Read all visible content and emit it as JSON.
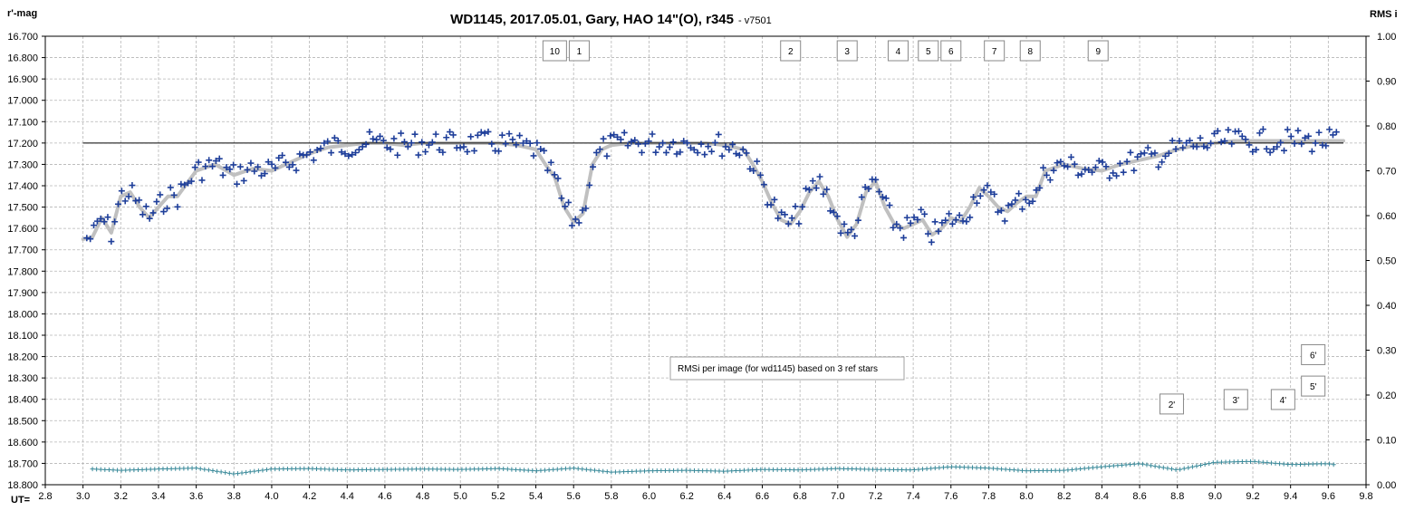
{
  "chart_data": {
    "type": "scatter",
    "title": "WD1145, 2017.05.01,  Gary, HAO 14\"(O), r345",
    "subtitle": "- v7501",
    "ylabel_left": "r'-mag",
    "ylabel_right": "RMS i",
    "xlabel": "UT=",
    "xlim": [
      2.8,
      9.8
    ],
    "ylim_left": [
      16.7,
      18.8
    ],
    "ylim_right": [
      0.0,
      1.0
    ],
    "y_left_reversed": true,
    "grid": true,
    "x_ticks": [
      "2.8",
      "3.0",
      "3.2",
      "3.4",
      "3.6",
      "3.8",
      "4.0",
      "4.2",
      "4.4",
      "4.6",
      "4.8",
      "5.0",
      "5.2",
      "5.4",
      "5.6",
      "5.8",
      "6.0",
      "6.2",
      "6.4",
      "6.6",
      "6.8",
      "7.0",
      "7.2",
      "7.4",
      "7.6",
      "7.8",
      "8.0",
      "8.2",
      "8.4",
      "8.6",
      "8.8",
      "9.0",
      "9.2",
      "9.4",
      "9.6",
      "9.8"
    ],
    "y_left_ticks": [
      "16.700",
      "16.800",
      "16.900",
      "17.000",
      "17.100",
      "17.200",
      "17.300",
      "17.400",
      "17.500",
      "17.600",
      "17.700",
      "17.800",
      "17.900",
      "18.000",
      "18.100",
      "18.200",
      "18.300",
      "18.400",
      "18.500",
      "18.600",
      "18.700",
      "18.800"
    ],
    "y_right_ticks": [
      "1.00",
      "0.90",
      "0.80",
      "0.70",
      "0.60",
      "0.50",
      "0.40",
      "0.30",
      "0.20",
      "0.10",
      "0.00"
    ],
    "reference_level": {
      "y": 17.2,
      "x": [
        3.0,
        9.68
      ]
    },
    "smooth_curve": {
      "x": [
        3.0,
        3.05,
        3.1,
        3.15,
        3.2,
        3.25,
        3.3,
        3.35,
        3.4,
        3.45,
        3.5,
        3.6,
        3.7,
        3.8,
        3.9,
        4.0,
        4.1,
        4.2,
        4.3,
        4.4,
        4.5,
        4.6,
        4.7,
        4.8,
        4.9,
        5.0,
        5.1,
        5.2,
        5.3,
        5.4,
        5.45,
        5.5,
        5.55,
        5.6,
        5.65,
        5.7,
        5.75,
        5.8,
        5.9,
        6.0,
        6.1,
        6.2,
        6.3,
        6.4,
        6.5,
        6.55,
        6.6,
        6.65,
        6.7,
        6.75,
        6.8,
        6.85,
        6.9,
        6.95,
        7.0,
        7.05,
        7.1,
        7.15,
        7.2,
        7.25,
        7.3,
        7.35,
        7.4,
        7.45,
        7.5,
        7.55,
        7.6,
        7.65,
        7.7,
        7.75,
        7.8,
        7.85,
        7.9,
        7.95,
        8.0,
        8.05,
        8.1,
        8.2,
        8.3,
        8.4,
        8.5,
        8.6,
        8.7,
        8.8,
        8.9,
        9.0,
        9.1,
        9.2,
        9.3,
        9.4,
        9.5,
        9.6,
        9.68
      ],
      "y": [
        17.65,
        17.64,
        17.55,
        17.62,
        17.45,
        17.43,
        17.5,
        17.55,
        17.5,
        17.45,
        17.45,
        17.33,
        17.3,
        17.35,
        17.32,
        17.33,
        17.29,
        17.25,
        17.22,
        17.21,
        17.2,
        17.2,
        17.21,
        17.2,
        17.2,
        17.2,
        17.2,
        17.2,
        17.21,
        17.23,
        17.3,
        17.36,
        17.5,
        17.57,
        17.53,
        17.3,
        17.23,
        17.21,
        17.2,
        17.2,
        17.2,
        17.2,
        17.2,
        17.21,
        17.23,
        17.3,
        17.38,
        17.48,
        17.56,
        17.58,
        17.52,
        17.43,
        17.38,
        17.45,
        17.56,
        17.64,
        17.58,
        17.43,
        17.38,
        17.5,
        17.58,
        17.6,
        17.58,
        17.56,
        17.63,
        17.6,
        17.55,
        17.57,
        17.5,
        17.41,
        17.45,
        17.5,
        17.52,
        17.48,
        17.45,
        17.45,
        17.33,
        17.3,
        17.32,
        17.33,
        17.3,
        17.28,
        17.26,
        17.23,
        17.21,
        17.2,
        17.19,
        17.19,
        17.19,
        17.19,
        17.19,
        17.19,
        17.19
      ]
    },
    "rms_series": {
      "x": [
        3.05,
        3.2,
        3.4,
        3.6,
        3.8,
        4.0,
        4.2,
        4.4,
        4.6,
        4.8,
        5.0,
        5.2,
        5.4,
        5.6,
        5.8,
        6.0,
        6.2,
        6.4,
        6.6,
        6.8,
        7.0,
        7.2,
        7.4,
        7.6,
        7.8,
        8.0,
        8.2,
        8.4,
        8.6,
        8.8,
        9.0,
        9.2,
        9.4,
        9.6,
        9.64
      ],
      "y": [
        0.035,
        0.032,
        0.035,
        0.037,
        0.024,
        0.035,
        0.036,
        0.033,
        0.034,
        0.035,
        0.034,
        0.036,
        0.031,
        0.037,
        0.028,
        0.031,
        0.032,
        0.03,
        0.034,
        0.033,
        0.036,
        0.034,
        0.033,
        0.04,
        0.037,
        0.031,
        0.032,
        0.04,
        0.047,
        0.033,
        0.05,
        0.052,
        0.045,
        0.047,
        0.044
      ]
    },
    "event_labels": [
      {
        "label": "10",
        "x": 5.5
      },
      {
        "label": "1",
        "x": 5.63
      },
      {
        "label": "2",
        "x": 6.75
      },
      {
        "label": "3",
        "x": 7.05
      },
      {
        "label": "4",
        "x": 7.32
      },
      {
        "label": "5",
        "x": 7.48
      },
      {
        "label": "6",
        "x": 7.6
      },
      {
        "label": "7",
        "x": 7.83
      },
      {
        "label": "8",
        "x": 8.02
      },
      {
        "label": "9",
        "x": 8.38
      }
    ],
    "rms_event_labels": [
      {
        "label": "2'",
        "x": 8.77,
        "y": 0.18
      },
      {
        "label": "3'",
        "x": 9.11,
        "y": 0.19
      },
      {
        "label": "4'",
        "x": 9.36,
        "y": 0.19
      },
      {
        "label": "5'",
        "x": 9.52,
        "y": 0.22
      },
      {
        "label": "6'",
        "x": 9.52,
        "y": 0.29
      }
    ],
    "annotation": "RMSi per image (for wd1145) based on 3 ref stars",
    "colors": {
      "data": "#1f3f9a",
      "smooth": "#c0c0c0",
      "rms": "#3a8a9a",
      "grid": "#b5b5b5",
      "reference": "#000000"
    }
  }
}
